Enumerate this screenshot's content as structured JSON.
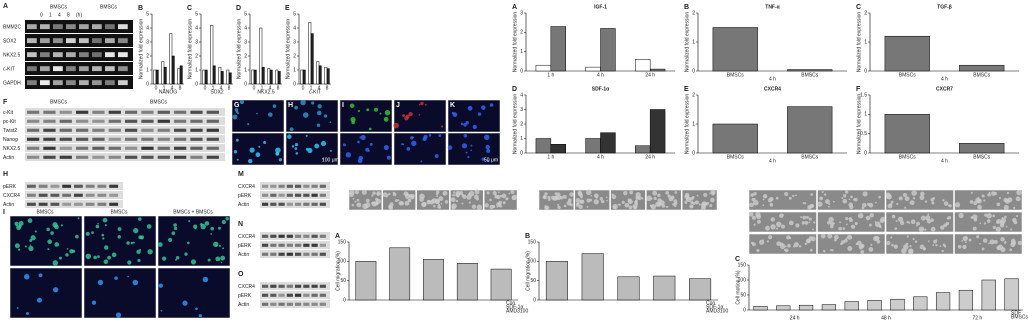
{
  "gel": {
    "letter": "A",
    "header_left": "BMSCs",
    "header_right": "BMSCs",
    "time_labels": [
      "0",
      "1",
      "4",
      "8",
      "(h)"
    ],
    "rows": [
      "BMM2C",
      "SOX2",
      "NKX2.5",
      "c-KIT",
      "GAPDH"
    ]
  },
  "small_charts": [
    {
      "letter": "B",
      "x_label": "NANOG",
      "y_label": "Normalized fold expression",
      "categories": [
        "0",
        "1",
        "4",
        "8"
      ],
      "series": [
        {
          "color": "#ffffff",
          "values": [
            1,
            1.6,
            3.6,
            1.1
          ]
        },
        {
          "color": "#222222",
          "values": [
            1,
            1.2,
            2,
            1.3
          ]
        }
      ],
      "ylim": [
        0,
        5
      ],
      "yticks": [
        0,
        1,
        2,
        3,
        4,
        5
      ]
    },
    {
      "letter": "C",
      "x_label": "SOX2",
      "y_label": "Normalized fold expression",
      "categories": [
        "0",
        "1",
        "4",
        "8"
      ],
      "series": [
        {
          "color": "#ffffff",
          "values": [
            1,
            4.2,
            1.2,
            1
          ]
        },
        {
          "color": "#222222",
          "values": [
            1,
            1.3,
            0.9,
            0.8
          ]
        }
      ],
      "ylim": [
        0,
        5
      ],
      "yticks": [
        0,
        1,
        2,
        3,
        4,
        5
      ]
    },
    {
      "letter": "D",
      "x_label": "NKX2.5",
      "y_label": "Normalized fold expression",
      "categories": [
        "0",
        "1",
        "4",
        "8"
      ],
      "series": [
        {
          "color": "#ffffff",
          "values": [
            1,
            4,
            1.1,
            1
          ]
        },
        {
          "color": "#222222",
          "values": [
            1,
            1.2,
            1,
            0.9
          ]
        }
      ],
      "ylim": [
        0,
        5
      ],
      "yticks": [
        0,
        1,
        2,
        3,
        4,
        5
      ]
    },
    {
      "letter": "E",
      "x_label": "c-KIT",
      "y_label": "Normalized fold expression",
      "categories": [
        "0",
        "1",
        "4",
        "8"
      ],
      "series": [
        {
          "color": "#ffffff",
          "values": [
            1,
            4.4,
            1.6,
            1.2
          ]
        },
        {
          "color": "#222222",
          "values": [
            1,
            3.6,
            1.3,
            1.1
          ]
        }
      ],
      "ylim": [
        0,
        5
      ],
      "yticks": [
        0,
        1,
        2,
        3,
        4,
        5
      ]
    }
  ],
  "western_top": {
    "letter": "F",
    "header_left": "BMSCs",
    "header_right": "BMSCs",
    "rows": [
      "c-Kit",
      "pc-Kit",
      "Twist2",
      "Nanog",
      "NKX2.5",
      "Actin"
    ]
  },
  "microscopy_top": {
    "letters": [
      "G",
      "H",
      "I",
      "J",
      "K"
    ],
    "scale_labels": [
      "100 μm",
      "50 μm"
    ]
  },
  "expression_charts": [
    {
      "letter": "A",
      "title": "IGF-1",
      "y_label": "Normalized fold expression",
      "categories": [
        "1 h",
        "4 h",
        "24 h"
      ],
      "series": [
        {
          "color": "#ffffff",
          "values": [
            0.3,
            0.2,
            0.6
          ]
        },
        {
          "color": "#777777",
          "values": [
            2.3,
            2.2,
            0.1
          ]
        }
      ],
      "ylim": [
        0,
        3
      ],
      "yticks": [
        0,
        1,
        2,
        3
      ]
    },
    {
      "letter": "B",
      "title": "TNF-α",
      "y_label": "Normalized fold expression",
      "categories": [
        "BMSCs",
        "BMSCs"
      ],
      "series": [
        {
          "color": "#777777",
          "values": [
            1.5,
            0.05
          ]
        }
      ],
      "ylim": [
        0,
        2
      ],
      "yticks": [
        0,
        1,
        2
      ],
      "group_label": "4 h"
    },
    {
      "letter": "C",
      "title": "TGF-β",
      "y_label": "Normalized fold expression",
      "categories": [
        "BMSCs",
        "BMSCs"
      ],
      "series": [
        {
          "color": "#777777",
          "values": [
            1.2,
            0.2
          ]
        }
      ],
      "ylim": [
        0,
        2
      ],
      "yticks": [
        0,
        1,
        2
      ],
      "group_label": "4 h"
    },
    {
      "letter": "D",
      "title": "SDF-1α",
      "y_label": "Normalized fold expression",
      "categories": [
        "1 h",
        "4 h",
        "24 h"
      ],
      "series": [
        {
          "color": "#777777",
          "values": [
            1,
            1,
            0.5
          ]
        },
        {
          "color": "#333333",
          "values": [
            0.6,
            1.4,
            3
          ]
        }
      ],
      "ylim": [
        0,
        4
      ],
      "yticks": [
        0,
        1,
        2,
        3,
        4
      ]
    },
    {
      "letter": "E",
      "title": "CXCR4",
      "y_label": "Normalized fold expression",
      "categories": [
        "BMSCs",
        "BMSCs"
      ],
      "series": [
        {
          "color": "#777777",
          "values": [
            1,
            1.6
          ]
        }
      ],
      "ylim": [
        0,
        2
      ],
      "yticks": [
        0,
        1,
        2
      ],
      "group_label": "4 h"
    },
    {
      "letter": "F",
      "title": "CXCR7",
      "y_label": "Normalized fold expression",
      "categories": [
        "BMSCs",
        "BMSCs"
      ],
      "series": [
        {
          "color": "#777777",
          "values": [
            1,
            0.25
          ]
        }
      ],
      "ylim": [
        0,
        1.5
      ],
      "yticks": [
        0,
        0.5,
        1,
        1.5
      ],
      "group_label": "4 h"
    }
  ],
  "blots_bottom": [
    {
      "letter": "H",
      "rows": [
        "pERK",
        "CXCR4",
        "Actin"
      ]
    },
    {
      "letter": "M",
      "rows": [
        "CXCR4",
        "pERK",
        "Actin"
      ]
    },
    {
      "letter": "N",
      "rows": [
        "CXCR4",
        "pERK",
        "Actin"
      ]
    },
    {
      "letter": "O",
      "rows": [
        "CXCR4",
        "pERK",
        "Actin"
      ]
    }
  ],
  "microscopy_bottom": {
    "letter": "I",
    "headers": [
      "BMSCs",
      "BMSCs",
      "BMSCs + BMSCs"
    ]
  },
  "migration_charts": [
    {
      "letter": "A",
      "y_label": "Cell migration (%)",
      "categories": [
        null,
        null,
        null,
        null,
        null
      ],
      "series": [
        {
          "color": "#bbbbbb",
          "values": [
            100,
            135,
            105,
            95,
            80
          ]
        }
      ],
      "ylim": [
        0,
        150
      ],
      "yticks": [
        0,
        50,
        100,
        150
      ],
      "conditions": [
        "Con",
        "SDF-1α",
        "AMD3100"
      ]
    },
    {
      "letter": "B",
      "y_label": "Cell migration (%)",
      "categories": [
        null,
        null,
        null,
        null,
        null
      ],
      "series": [
        {
          "color": "#bbbbbb",
          "values": [
            100,
            120,
            60,
            62,
            55
          ]
        }
      ],
      "ylim": [
        0,
        150
      ],
      "yticks": [
        0,
        50,
        100,
        150
      ],
      "conditions": [
        "Con",
        "SDF-1α",
        "AMD3100"
      ]
    },
    {
      "letter": "C",
      "y_label": "Cell motion (%)",
      "categories": [
        null,
        null,
        null,
        null,
        null,
        null,
        null,
        null,
        null,
        null,
        null,
        null
      ],
      "series": [
        {
          "color": "#cccccc",
          "values": [
            12,
            14,
            16,
            18,
            28,
            32,
            36,
            44,
            58,
            66,
            100,
            104
          ]
        }
      ],
      "ylim": [
        0,
        150
      ],
      "yticks": [
        0,
        50,
        100,
        150
      ],
      "conditions": [
        "SDF",
        "BMSCs"
      ],
      "time_labels": [
        "24 h",
        "48 h",
        "72 h"
      ]
    }
  ]
}
